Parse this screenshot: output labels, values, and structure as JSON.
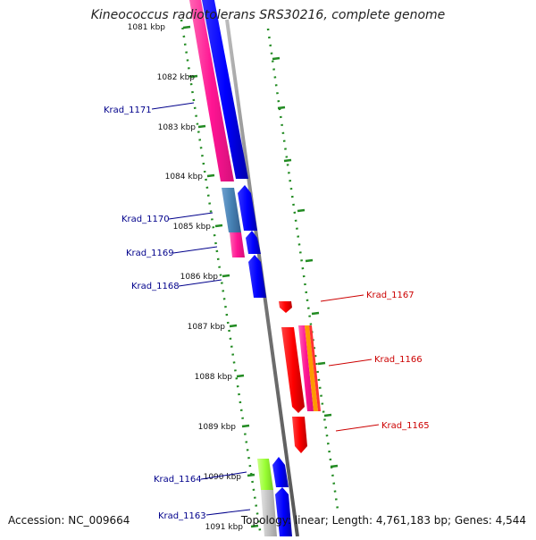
{
  "title": "Kineococcus radiotolerans SRS30216, complete genome",
  "accession": "Accession: NC_009664",
  "stats": "Topology: linear; Length: 4,761,183 bp; Genes: 4,544",
  "ticks": [
    "1081 kbp",
    "1082 kbp",
    "1083 kbp",
    "1084 kbp",
    "1085 kbp",
    "1086 kbp",
    "1087 kbp",
    "1088 kbp",
    "1089 kbp",
    "1090 kbp",
    "1091 kbp"
  ],
  "genes_left": [
    "Krad_1171",
    "Krad_1170",
    "Krad_1169",
    "Krad_1168",
    "Krad_1164",
    "Krad_1163"
  ],
  "genes_right": [
    "Krad_1167",
    "Krad_1166",
    "Krad_1165"
  ],
  "colors": {
    "forward": "#0000ff",
    "reverse": "#ff0000",
    "pink": "#ff1493",
    "steelblue": "#4682b4",
    "lime": "#99ff33",
    "silver": "#c0c0c0",
    "orange": "#ff9900",
    "label_left": "#00008b",
    "label_right": "#cc0000",
    "track_dots": "#228b22",
    "axis": "#888888"
  }
}
